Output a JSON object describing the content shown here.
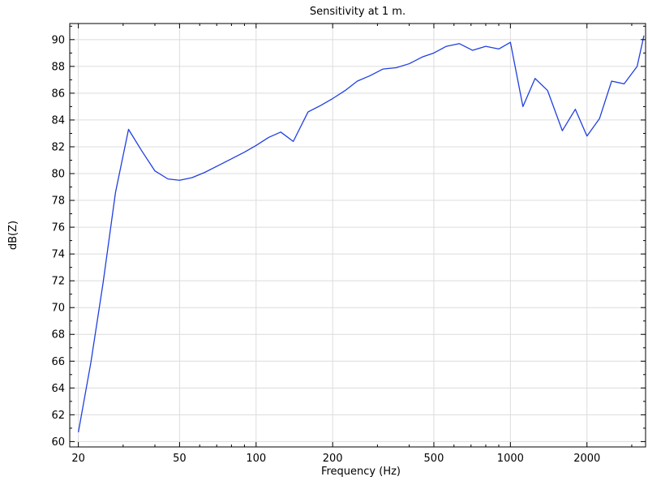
{
  "chart_data": {
    "type": "line",
    "title": "Sensitivity at 1 m.",
    "xlabel": "Frequency (Hz)",
    "ylabel": "dB(Z)",
    "x_scale": "log",
    "xlim": [
      18.5,
      3400
    ],
    "ylim": [
      59.6,
      91.2
    ],
    "x_ticks": [
      20,
      50,
      100,
      200,
      500,
      1000,
      2000
    ],
    "x_tick_labels": [
      "20",
      "50",
      "100",
      "200",
      "500",
      "1000",
      "2000"
    ],
    "y_ticks": [
      60,
      62,
      64,
      66,
      68,
      70,
      72,
      74,
      76,
      78,
      80,
      82,
      84,
      86,
      88,
      90
    ],
    "y_tick_labels": [
      "60",
      "62",
      "64",
      "66",
      "68",
      "70",
      "72",
      "74",
      "76",
      "78",
      "80",
      "82",
      "84",
      "86",
      "88",
      "90"
    ],
    "grid": true,
    "colors": {
      "line": "#1f3fe0",
      "grid": "#dcdcdc",
      "axis": "#000000"
    },
    "series": [
      {
        "x": [
          20,
          22.4,
          25,
          28,
          31.5,
          35.5,
          40,
          45,
          50,
          56,
          63,
          71,
          80,
          90,
          100,
          112,
          125,
          140,
          160,
          180,
          200,
          224,
          250,
          280,
          315,
          355,
          400,
          450,
          500,
          560,
          630,
          710,
          800,
          900,
          1000,
          1120,
          1250,
          1400,
          1600,
          1800,
          2000,
          2240,
          2500,
          2800,
          3150,
          3350
        ],
        "y": [
          60.7,
          65.9,
          71.8,
          78.6,
          83.3,
          81.7,
          80.2,
          79.6,
          79.5,
          79.7,
          80.1,
          80.6,
          81.1,
          81.6,
          82.1,
          82.7,
          83.1,
          82.4,
          84.6,
          85.1,
          85.6,
          86.2,
          86.9,
          87.3,
          87.8,
          87.9,
          88.2,
          88.7,
          89.0,
          89.5,
          89.7,
          89.2,
          89.5,
          89.3,
          89.8,
          85.0,
          87.1,
          86.2,
          83.2,
          84.8,
          82.8,
          84.1,
          86.9,
          86.7,
          88.0,
          90.3
        ]
      }
    ]
  }
}
